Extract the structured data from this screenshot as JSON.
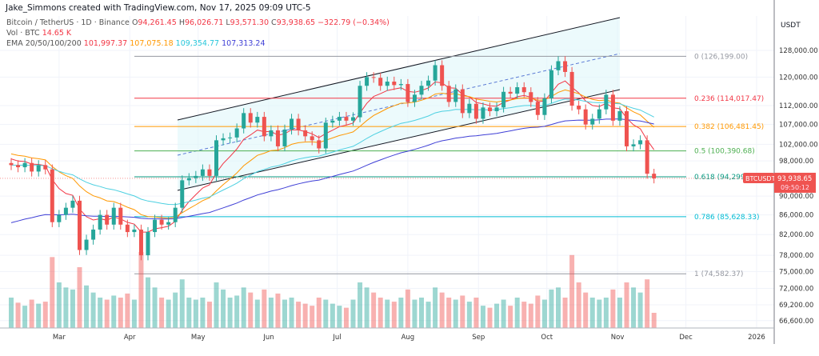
{
  "author_line": "Jake_Simmons created with TradingView.com, Nov 17, 2025 09:09 UTC-5",
  "legend": {
    "symbol": "Bitcoin / TetherUS · 1D · Binance",
    "o_label": "O",
    "open": "94,261.45",
    "h_label": "H",
    "high": "96,026.71",
    "l_label": "L",
    "low": "93,571.30",
    "c_label": "C",
    "close": "93,938.65",
    "change": "−322.79 (−0.34%)",
    "vol_label": "Vol · BTC",
    "vol": "14.65 K",
    "ema_label": "EMA 20/50/100/200",
    "ema20": "101,997.37",
    "ema50": "107,075.18",
    "ema100": "109,354.77",
    "ema200": "107,313.24"
  },
  "colors": {
    "up": "#26a69a",
    "down": "#ef5350",
    "ema20": "#f23645",
    "ema50": "#ff9800",
    "ema100": "#4dd0e1",
    "ema200": "#3f3fd6"
  },
  "price_axis": {
    "currency": "USDT",
    "ticks": [
      "128,000.00",
      "120,000.00",
      "112,000.00",
      "107,000.00",
      "102,000.00",
      "98,000.00",
      "90,000.00",
      "86,000.00",
      "82,000.00",
      "78,000.00",
      "75,000.00",
      "72,000.00",
      "69,200.00",
      "66,600.00"
    ],
    "tick_values": [
      128000,
      120000,
      112000,
      107000,
      102000,
      98000,
      90000,
      86000,
      82000,
      78000,
      75000,
      72000,
      69200,
      66600
    ]
  },
  "time_axis": {
    "ticks": [
      "Mar",
      "Apr",
      "May",
      "Jun",
      "Jul",
      "Aug",
      "Sep",
      "Oct",
      "Nov",
      "Dec",
      "2026"
    ],
    "tick_days": [
      21,
      52,
      82,
      113,
      143,
      174,
      205,
      235,
      266,
      296,
      327
    ]
  },
  "last_price": {
    "symbol": "BTCUSDT",
    "price": "93,938.65",
    "countdown": "09:50:12"
  },
  "fib": [
    {
      "label": "0 (126,199.00)",
      "value": 126199,
      "color": "#9598a1"
    },
    {
      "label": "0.236 (114,017.47)",
      "value": 114017.47,
      "color": "#f23645"
    },
    {
      "label": "0.382 (106,481.45)",
      "value": 106481.45,
      "color": "#ff9800"
    },
    {
      "label": "0.5 (100,390.68)",
      "value": 100390.68,
      "color": "#4caf50"
    },
    {
      "label": "0.618 (94,299.9",
      "value": 94299.9,
      "color": "#089981"
    },
    {
      "label": "0.786 (85,628.33)",
      "value": 85628.33,
      "color": "#00bcd4"
    },
    {
      "label": "1 (74,582.37)",
      "value": 74582.37,
      "color": "#9598a1"
    }
  ],
  "chart_data": {
    "type": "candlestick",
    "title": "Bitcoin / TetherUS · 1D · Binance",
    "start_date": "2025-02-08",
    "interval_days": 3,
    "scale": "log",
    "ylim": [
      66600,
      132000
    ],
    "closes": [
      97000,
      96500,
      97500,
      95500,
      97000,
      96000,
      84500,
      86000,
      87500,
      89000,
      79000,
      81000,
      83000,
      86000,
      84000,
      87500,
      84000,
      82500,
      83000,
      78000,
      82500,
      85000,
      84000,
      84500,
      87500,
      93500,
      94000,
      94500,
      96000,
      94500,
      103000,
      103500,
      103700,
      106000,
      110000,
      107500,
      109000,
      104000,
      105500,
      101500,
      105700,
      108500,
      105500,
      104000,
      103000,
      101000,
      107500,
      108000,
      109000,
      108000,
      108900,
      117500,
      120000,
      119800,
      117500,
      118700,
      117700,
      118000,
      113000,
      115000,
      117500,
      119000,
      123500,
      117500,
      113000,
      116500,
      110000,
      112500,
      108500,
      111500,
      110500,
      111500,
      115800,
      115300,
      117100,
      115700,
      113000,
      109500,
      114000,
      122000,
      124700,
      121500,
      112000,
      111000,
      107000,
      108500,
      111000,
      115000,
      108000,
      110500,
      101500,
      102000,
      103000,
      95000,
      93938.65
    ],
    "volumes_k": [
      30,
      25,
      22,
      28,
      24,
      26,
      70,
      45,
      40,
      38,
      60,
      42,
      35,
      30,
      28,
      32,
      30,
      34,
      28,
      75,
      50,
      40,
      30,
      28,
      35,
      48,
      30,
      28,
      30,
      26,
      45,
      38,
      30,
      32,
      40,
      35,
      28,
      38,
      30,
      34,
      28,
      30,
      26,
      24,
      22,
      30,
      28,
      24,
      22,
      20,
      28,
      45,
      40,
      35,
      30,
      28,
      26,
      30,
      38,
      28,
      30,
      26,
      40,
      35,
      30,
      28,
      32,
      26,
      30,
      22,
      20,
      24,
      28,
      22,
      30,
      26,
      24,
      32,
      28,
      38,
      40,
      30,
      72,
      45,
      35,
      30,
      28,
      30,
      38,
      30,
      45,
      40,
      35,
      48,
      15
    ],
    "emas": [
      "EMA 20",
      "EMA 50",
      "EMA 100",
      "EMA 200"
    ]
  }
}
